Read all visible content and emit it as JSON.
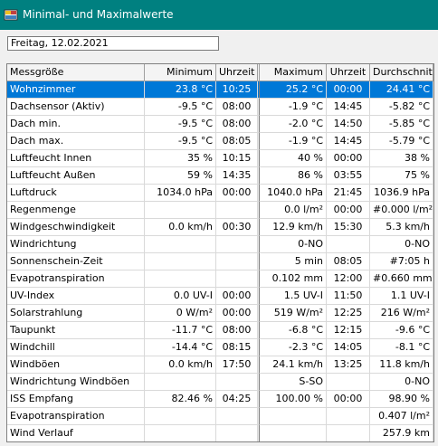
{
  "window": {
    "title": "Minimal- und Maximalwerte",
    "icon": "weather-app-icon"
  },
  "date_field": {
    "value": "Freitag, 12.02.2021"
  },
  "table": {
    "columns": [
      "Messgröße",
      "Minimum",
      "Uhrzeit",
      "Maximum",
      "Uhrzeit",
      "Durchschnitt"
    ],
    "rows": [
      [
        "Wohnzimmer",
        "23.8 °C",
        "10:25",
        "25.2 °C",
        "00:00",
        "24.41 °C"
      ],
      [
        "Dachsensor (Aktiv)",
        "-9.5 °C",
        "08:00",
        "-1.9 °C",
        "14:45",
        "-5.82 °C"
      ],
      [
        "Dach min.",
        "-9.5 °C",
        "08:00",
        "-2.0 °C",
        "14:50",
        "-5.85 °C"
      ],
      [
        "Dach max.",
        "-9.5 °C",
        "08:05",
        "-1.9 °C",
        "14:45",
        "-5.79 °C"
      ],
      [
        "Luftfeucht Innen",
        "35 %",
        "10:15",
        "40 %",
        "00:00",
        "38 %"
      ],
      [
        "Luftfeucht Außen",
        "59 %",
        "14:35",
        "86 %",
        "03:55",
        "75 %"
      ],
      [
        "Luftdruck",
        "1034.0 hPa",
        "00:00",
        "1040.0 hPa",
        "21:45",
        "1036.9 hPa"
      ],
      [
        "Regenmenge",
        "",
        "",
        "0.0 l/m²",
        "00:00",
        "#0.000 l/m²"
      ],
      [
        "Windgeschwindigkeit",
        "0.0 km/h",
        "00:30",
        "12.9 km/h",
        "15:30",
        "5.3 km/h"
      ],
      [
        "Windrichtung",
        "",
        "",
        "0-NO",
        "",
        "0-NO"
      ],
      [
        "Sonnenschein-Zeit",
        "",
        "",
        "5 min",
        "08:05",
        "#7:05 h"
      ],
      [
        "Evapotranspiration",
        "",
        "",
        "0.102 mm",
        "12:00",
        "#0.660 mm"
      ],
      [
        "UV-Index",
        "0.0 UV-I",
        "00:00",
        "1.5 UV-I",
        "11:50",
        "1.1 UV-I"
      ],
      [
        "Solarstrahlung",
        "0 W/m²",
        "00:00",
        "519 W/m²",
        "12:25",
        "216 W/m²"
      ],
      [
        "Taupunkt",
        "-11.7 °C",
        "08:00",
        "-6.8 °C",
        "12:15",
        "-9.6 °C"
      ],
      [
        "Windchill",
        "-14.4 °C",
        "08:15",
        "-2.3 °C",
        "14:05",
        "-8.1 °C"
      ],
      [
        "Windböen",
        "0.0 km/h",
        "17:50",
        "24.1 km/h",
        "13:25",
        "11.8 km/h"
      ],
      [
        "Windrichtung Windböen",
        "",
        "",
        "S-SO",
        "",
        "0-NO"
      ],
      [
        "ISS Empfang",
        "82.46 %",
        "04:25",
        "100.00 %",
        "00:00",
        "98.90 %"
      ],
      [
        "Evapotranspiration",
        "",
        "",
        "",
        "",
        "0.407 l/m²"
      ],
      [
        "Wind Verlauf",
        "",
        "",
        "",
        "",
        "257.9 km"
      ]
    ],
    "selected_row": 0
  },
  "colors": {
    "titlebar": "#008080",
    "selection": "#0078d7"
  }
}
